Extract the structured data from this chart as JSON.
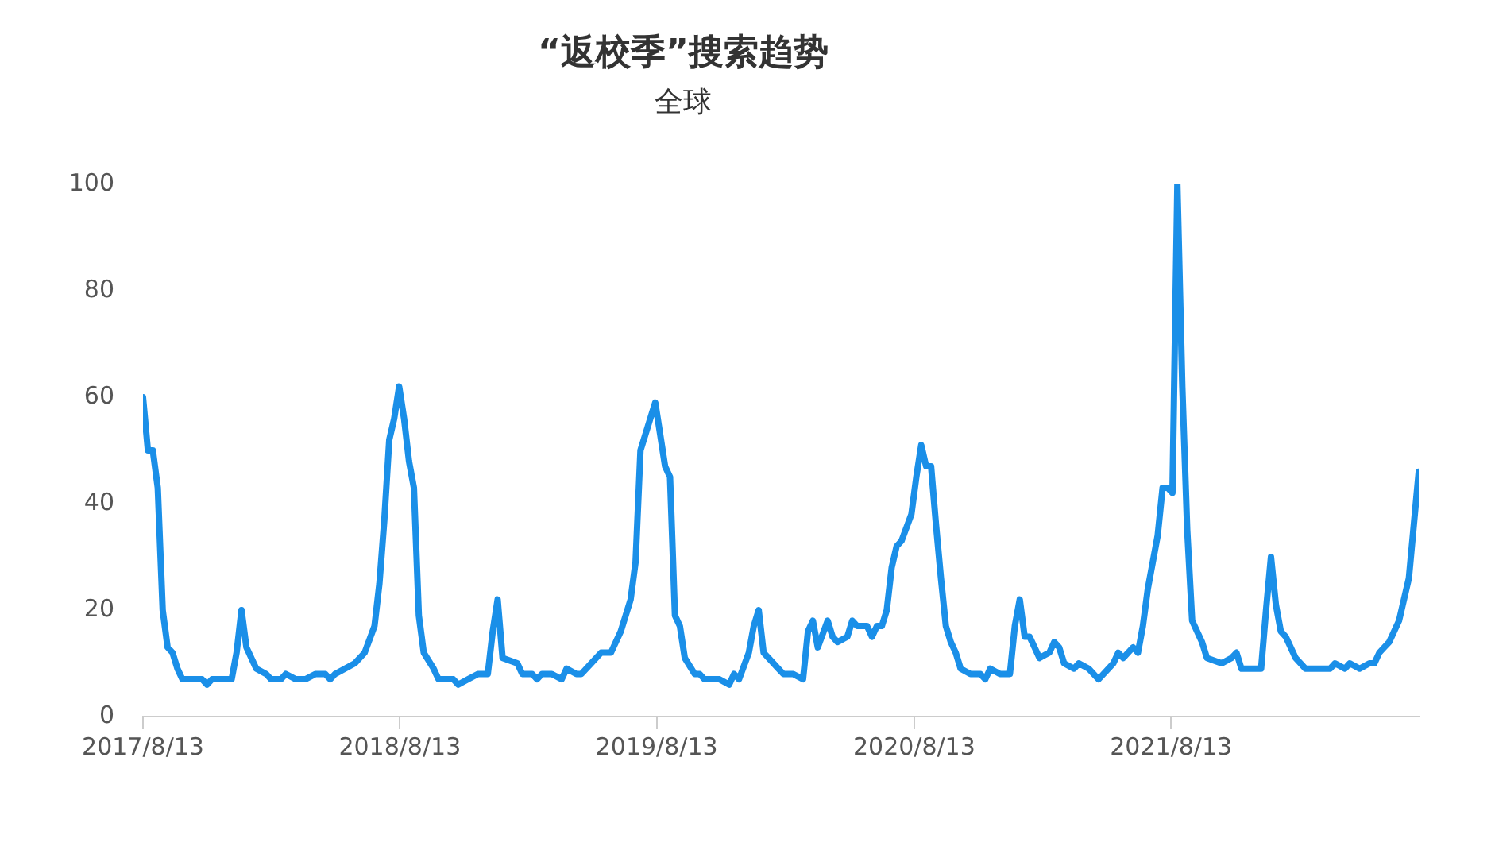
{
  "chart_data": {
    "type": "line",
    "title": "“返校季”搜索趋势",
    "subtitle": "全球",
    "color": "#1a8fe8",
    "grid": false,
    "xlim": [
      "2017-08-13",
      "2022-07-31"
    ],
    "xticks": [
      {
        "value": "2017-08-13",
        "label": "2017/8/13"
      },
      {
        "value": "2018-08-13",
        "label": "2018/8/13"
      },
      {
        "value": "2019-08-13",
        "label": "2019/8/13"
      },
      {
        "value": "2020-08-13",
        "label": "2020/8/13"
      },
      {
        "value": "2021-08-13",
        "label": "2021/8/13"
      }
    ],
    "ylim": [
      0,
      100
    ],
    "yticks": [
      0,
      20,
      40,
      60,
      80,
      100
    ],
    "x": [
      "2017-08-13",
      "2017-08-20",
      "2017-08-27",
      "2017-09-03",
      "2017-09-10",
      "2017-09-17",
      "2017-09-24",
      "2017-10-01",
      "2017-10-08",
      "2017-10-22",
      "2017-11-05",
      "2017-11-12",
      "2017-11-19",
      "2017-12-17",
      "2017-12-24",
      "2017-12-31",
      "2018-01-07",
      "2018-01-21",
      "2018-02-04",
      "2018-02-11",
      "2018-02-25",
      "2018-03-04",
      "2018-03-18",
      "2018-04-01",
      "2018-04-15",
      "2018-04-29",
      "2018-05-06",
      "2018-05-13",
      "2018-05-27",
      "2018-06-10",
      "2018-06-24",
      "2018-07-08",
      "2018-07-15",
      "2018-07-22",
      "2018-07-29",
      "2018-08-05",
      "2018-08-12",
      "2018-08-19",
      "2018-08-26",
      "2018-09-02",
      "2018-09-09",
      "2018-09-16",
      "2018-09-30",
      "2018-10-07",
      "2018-10-28",
      "2018-11-04",
      "2018-11-18",
      "2018-12-02",
      "2018-12-16",
      "2018-12-23",
      "2018-12-30",
      "2019-01-06",
      "2019-01-27",
      "2019-02-03",
      "2019-02-17",
      "2019-02-24",
      "2019-03-03",
      "2019-03-17",
      "2019-03-31",
      "2019-04-07",
      "2019-04-21",
      "2019-04-28",
      "2019-05-12",
      "2019-05-26",
      "2019-06-09",
      "2019-06-23",
      "2019-07-07",
      "2019-07-14",
      "2019-07-21",
      "2019-08-04",
      "2019-08-11",
      "2019-08-18",
      "2019-08-25",
      "2019-09-01",
      "2019-09-08",
      "2019-09-15",
      "2019-09-22",
      "2019-10-06",
      "2019-10-13",
      "2019-10-20",
      "2019-11-03",
      "2019-11-10",
      "2019-11-24",
      "2019-12-01",
      "2019-12-08",
      "2019-12-22",
      "2019-12-29",
      "2020-01-05",
      "2020-01-12",
      "2020-01-19",
      "2020-02-02",
      "2020-02-09",
      "2020-02-23",
      "2020-03-08",
      "2020-03-15",
      "2020-03-22",
      "2020-03-29",
      "2020-04-12",
      "2020-04-19",
      "2020-04-26",
      "2020-05-10",
      "2020-05-17",
      "2020-05-24",
      "2020-06-07",
      "2020-06-14",
      "2020-06-21",
      "2020-06-28",
      "2020-07-05",
      "2020-07-12",
      "2020-07-19",
      "2020-07-26",
      "2020-08-09",
      "2020-08-16",
      "2020-08-23",
      "2020-08-30",
      "2020-09-06",
      "2020-09-13",
      "2020-09-20",
      "2020-09-27",
      "2020-10-04",
      "2020-10-11",
      "2020-10-18",
      "2020-11-01",
      "2020-11-15",
      "2020-11-22",
      "2020-11-29",
      "2020-12-13",
      "2020-12-27",
      "2021-01-03",
      "2021-01-10",
      "2021-01-17",
      "2021-01-24",
      "2021-01-31",
      "2021-02-07",
      "2021-02-21",
      "2021-02-28",
      "2021-03-07",
      "2021-03-14",
      "2021-03-28",
      "2021-04-04",
      "2021-04-18",
      "2021-05-02",
      "2021-05-16",
      "2021-05-23",
      "2021-05-30",
      "2021-06-06",
      "2021-06-20",
      "2021-06-27",
      "2021-07-04",
      "2021-07-11",
      "2021-07-18",
      "2021-07-25",
      "2021-08-01",
      "2021-08-08",
      "2021-08-15",
      "2021-08-22",
      "2021-08-29",
      "2021-09-05",
      "2021-09-12",
      "2021-09-26",
      "2021-10-03",
      "2021-10-24",
      "2021-11-07",
      "2021-11-14",
      "2021-11-21",
      "2021-11-28",
      "2021-12-12",
      "2021-12-19",
      "2021-12-26",
      "2022-01-02",
      "2022-01-09",
      "2022-01-16",
      "2022-01-23",
      "2022-02-06",
      "2022-02-20",
      "2022-03-13",
      "2022-03-27",
      "2022-04-03",
      "2022-04-17",
      "2022-04-24",
      "2022-05-08",
      "2022-05-22",
      "2022-05-29",
      "2022-06-05",
      "2022-06-12",
      "2022-06-19",
      "2022-07-03",
      "2022-07-17",
      "2022-07-24",
      "2022-07-31"
    ],
    "values": [
      60,
      50,
      50,
      43,
      20,
      13,
      12,
      9,
      7,
      7,
      7,
      6,
      7,
      7,
      12,
      20,
      13,
      9,
      8,
      7,
      7,
      8,
      7,
      7,
      8,
      8,
      7,
      8,
      9,
      10,
      12,
      17,
      25,
      37,
      52,
      56,
      62,
      56,
      48,
      43,
      19,
      12,
      9,
      7,
      7,
      6,
      7,
      8,
      8,
      16,
      22,
      11,
      10,
      8,
      8,
      7,
      8,
      8,
      7,
      9,
      8,
      8,
      10,
      12,
      12,
      16,
      22,
      29,
      50,
      56,
      59,
      53,
      47,
      45,
      19,
      17,
      11,
      8,
      8,
      7,
      7,
      7,
      6,
      8,
      7,
      12,
      17,
      20,
      12,
      11,
      9,
      8,
      8,
      7,
      16,
      18,
      13,
      18,
      15,
      14,
      15,
      18,
      17,
      17,
      15,
      17,
      17,
      20,
      28,
      32,
      33,
      38,
      45,
      51,
      47,
      47,
      36,
      26,
      17,
      14,
      12,
      9,
      8,
      8,
      7,
      9,
      8,
      8,
      17,
      22,
      15,
      15,
      13,
      11,
      12,
      14,
      13,
      10,
      9,
      10,
      9,
      7,
      9,
      10,
      12,
      11,
      13,
      12,
      17,
      24,
      29,
      34,
      43,
      43,
      42,
      100,
      62,
      35,
      18,
      14,
      11,
      10,
      11,
      12,
      9,
      9,
      9,
      9,
      20,
      30,
      21,
      16,
      15,
      11,
      9,
      9,
      9,
      10,
      9,
      10,
      9,
      10,
      10,
      12,
      13,
      14,
      18,
      26,
      36,
      46
    ]
  }
}
